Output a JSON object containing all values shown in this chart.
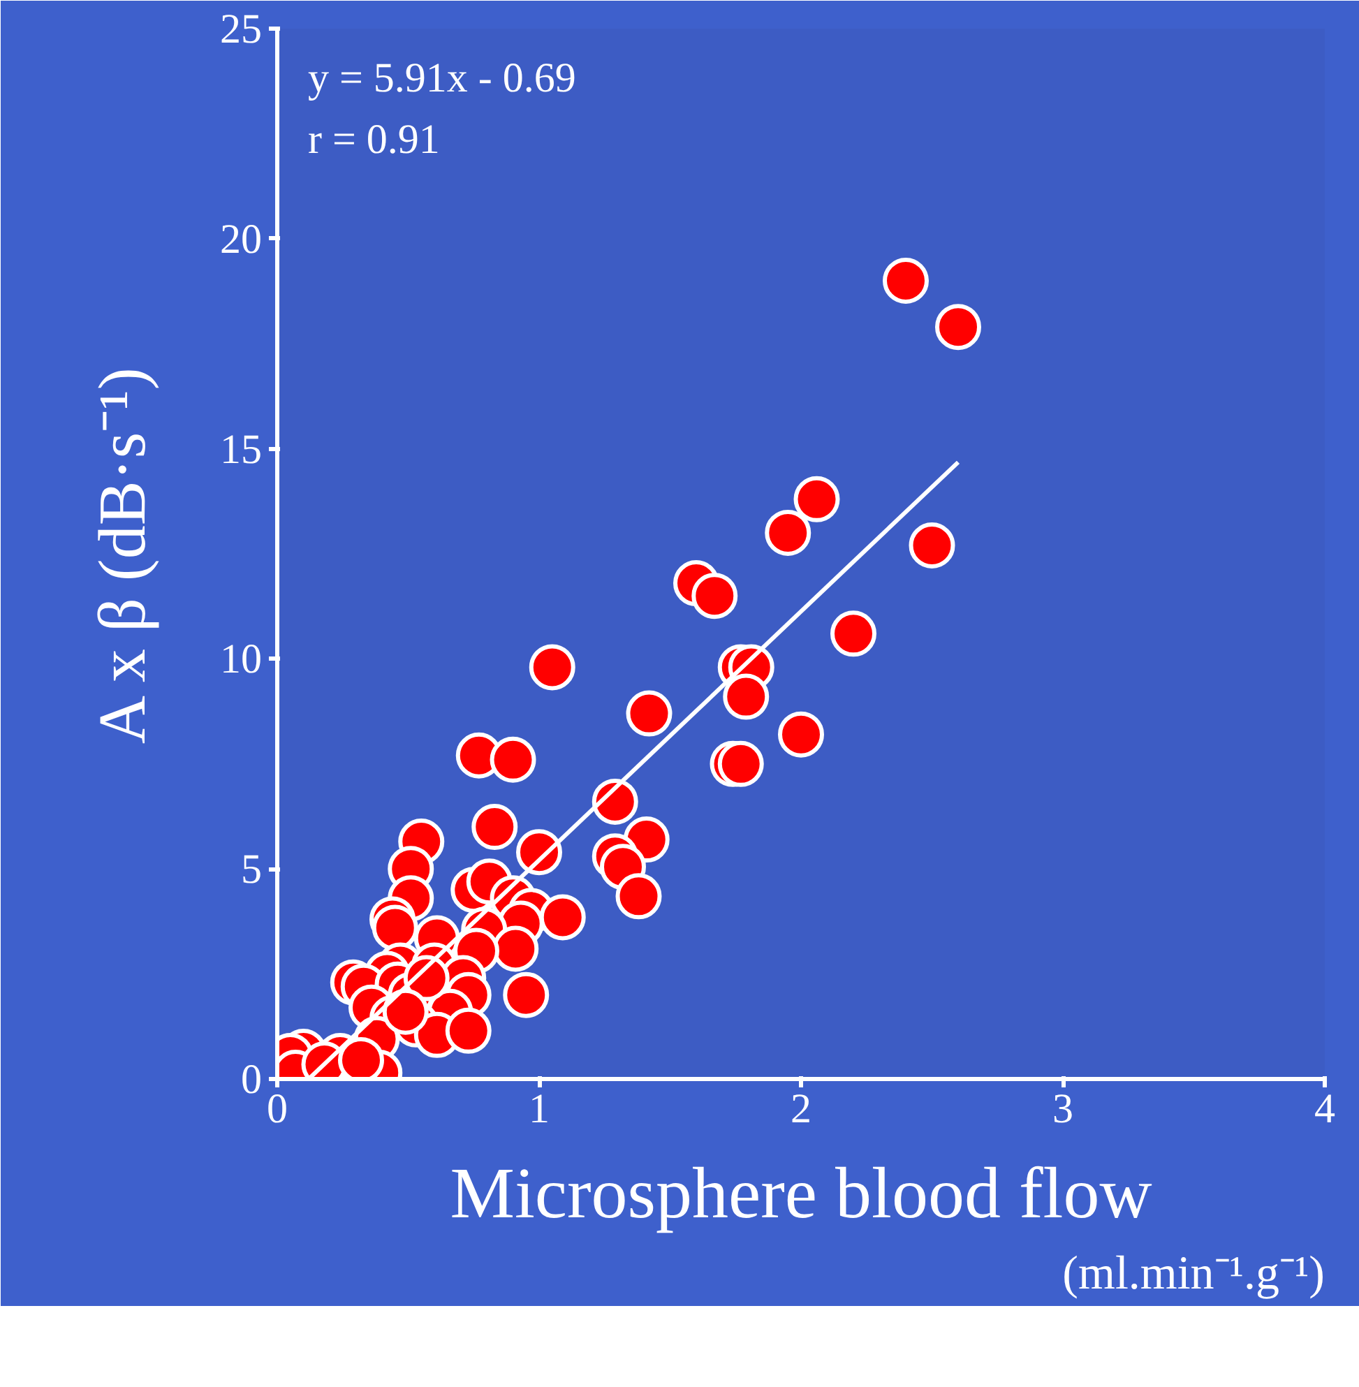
{
  "chart_data": {
    "type": "scatter",
    "xlabel": "Microsphere blood flow\n(ml.min⁻¹.g⁻¹)",
    "ylabel": "A x β (dB·s⁻¹)",
    "annotations": [
      "y = 5.91x - 0.69",
      "r = 0.91"
    ],
    "xlim": [
      0,
      4
    ],
    "ylim": [
      0,
      25
    ],
    "xticks": [
      0,
      1,
      2,
      3,
      4
    ],
    "yticks": [
      0,
      5,
      10,
      15,
      20,
      25
    ],
    "grid": false,
    "marker": "circle",
    "series": [
      {
        "color": "#ff0000",
        "x": [
          2.4,
          2.6,
          2.06,
          1.95,
          2.5,
          1.6,
          1.67,
          2.2,
          1.05,
          1.77,
          1.81,
          1.79,
          1.42,
          2.0,
          0.77,
          0.9,
          1.74,
          1.77,
          1.29,
          0.83,
          0.55,
          1.41,
          1.0,
          1.29,
          1.32,
          1.38,
          0.51,
          0.51,
          0.75,
          0.81,
          0.9,
          0.97,
          1.09,
          0.93,
          0.44,
          0.45,
          0.61,
          0.79,
          0.91,
          0.76,
          0.47,
          0.6,
          0.71,
          0.42,
          0.29,
          0.33,
          0.46,
          0.51,
          0.36,
          0.95,
          0.73,
          0.66,
          0.44,
          0.53,
          0.61,
          0.73,
          0.38,
          0.24,
          0.1,
          0.05,
          0.07,
          0.18,
          0.39,
          0.32,
          0.57,
          0.49
        ],
        "values": [
          19.0,
          17.9,
          13.8,
          13.0,
          12.7,
          11.8,
          11.5,
          10.6,
          9.8,
          9.8,
          9.8,
          9.1,
          8.7,
          8.2,
          7.7,
          7.6,
          7.5,
          7.5,
          6.6,
          6.0,
          5.65,
          5.7,
          5.4,
          5.3,
          5.05,
          4.35,
          5.0,
          4.3,
          4.5,
          4.7,
          4.3,
          4.0,
          3.85,
          3.7,
          3.8,
          3.6,
          3.35,
          3.55,
          3.1,
          3.05,
          2.7,
          2.7,
          2.4,
          2.5,
          2.3,
          2.2,
          2.25,
          2.0,
          1.7,
          2.0,
          2.0,
          1.6,
          1.45,
          1.3,
          1.05,
          1.15,
          0.95,
          0.55,
          0.65,
          0.55,
          0.15,
          0.35,
          0.15,
          0.45,
          2.4,
          1.6
        ]
      },
      {
        "type": "line",
        "color": "#ffffff",
        "marker": "none",
        "x": [
          0.12,
          2.6
        ],
        "values": [
          0.0,
          14.68
        ]
      }
    ]
  }
}
